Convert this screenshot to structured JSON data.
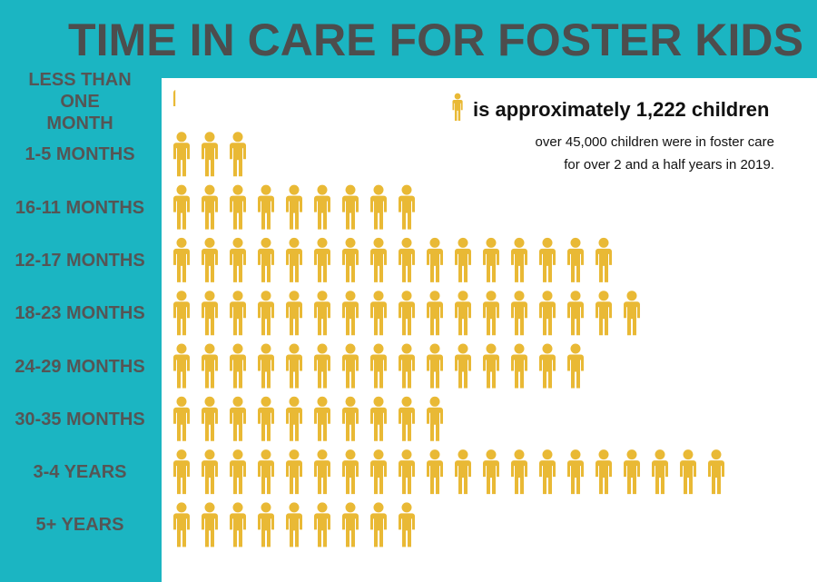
{
  "chart_data": {
    "type": "pictograph",
    "title": "TIME IN CARE FOR FOSTER KIDS",
    "legend_label": "is approximately 1,222 children",
    "notes": [
      "over 45,000 children were in foster care",
      "for over 2 and a half years in 2019."
    ],
    "categories": [
      "LESS THAN ONE MONTH",
      "1-5 MONTHS",
      "16-11 MONTHS",
      "12-17 MONTHS",
      "18-23 MONTHS",
      "24-29 MONTHS",
      "30-35 MONTHS",
      "3-4 YEARS",
      "5+ YEARS"
    ],
    "values": [
      0.2,
      3,
      9,
      16,
      17,
      15,
      10,
      20,
      9
    ],
    "color": "#e9b935"
  }
}
